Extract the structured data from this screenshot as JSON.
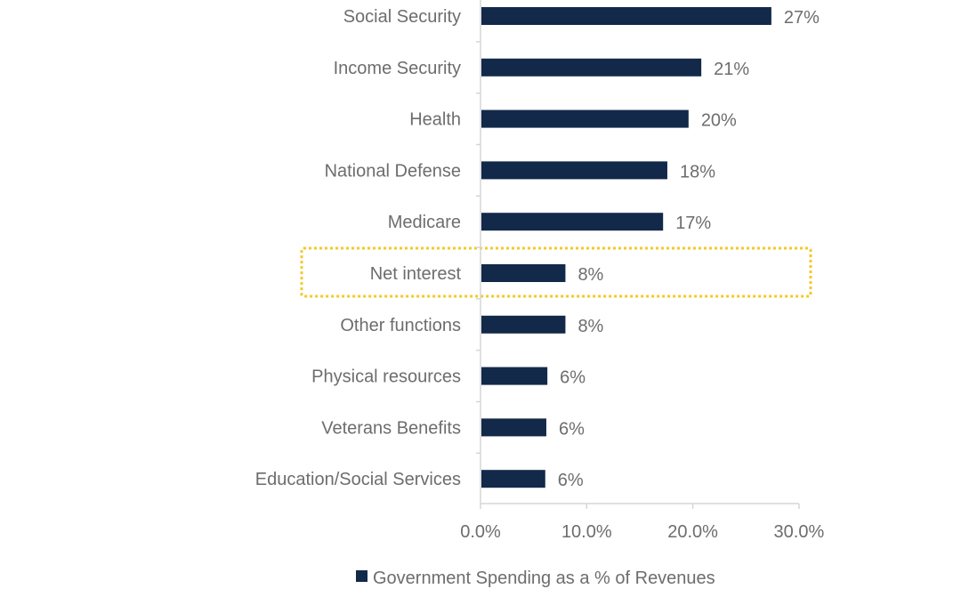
{
  "chart_data": {
    "type": "bar",
    "orientation": "horizontal",
    "categories": [
      "Social Security",
      "Income Security",
      "Health",
      "National Defense",
      "Medicare",
      "Net interest",
      "Other functions",
      "Physical resources",
      "Veterans Benefits",
      "Education/Social Services"
    ],
    "series": [
      {
        "name": "Government Spending as a % of Revenues",
        "values": [
          27.4,
          20.8,
          19.6,
          17.6,
          17.2,
          8.0,
          8.0,
          6.3,
          6.2,
          6.1
        ],
        "data_labels": [
          "27%",
          "21%",
          "20%",
          "18%",
          "17%",
          "8%",
          "8%",
          "6%",
          "6%",
          "6%"
        ]
      }
    ],
    "xlim": [
      0,
      30
    ],
    "xticks": [
      0,
      10,
      20,
      30
    ],
    "xtick_labels": [
      "0.0%",
      "10.0%",
      "20.0%",
      "30.0%"
    ],
    "highlighted_category": "Net interest",
    "legend": "bottom",
    "grid": false
  },
  "colors": {
    "bar": "#12294a",
    "text": "#6d6d6d",
    "axis": "#d6d6d6",
    "highlight": "#f3c82b"
  }
}
